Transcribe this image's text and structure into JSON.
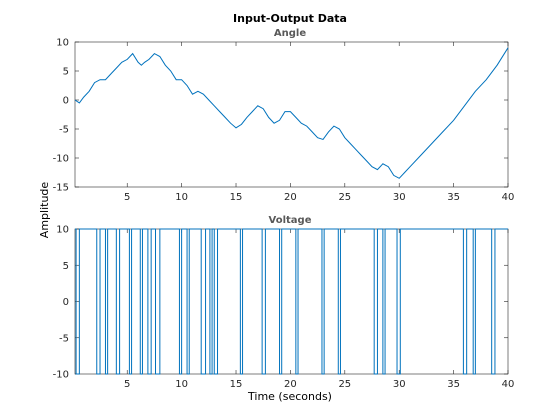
{
  "chart_data": {
    "type": "line",
    "title": "Input-Output Data",
    "xlabel": "Time (seconds)",
    "ylabel": "Amplitude",
    "xlim": [
      0.2,
      40
    ],
    "xticks": [
      5,
      10,
      15,
      20,
      25,
      30,
      35,
      40
    ],
    "grid": false,
    "line_color": "#0072BD",
    "panels": [
      {
        "name": "Angle",
        "ylim": [
          -15,
          10
        ],
        "yticks": [
          -15,
          -10,
          -5,
          0,
          5,
          10
        ],
        "x": [
          0.2,
          0.6,
          1.0,
          1.5,
          2.0,
          2.5,
          3.0,
          3.5,
          4.0,
          4.5,
          5.0,
          5.5,
          6.0,
          6.3,
          6.6,
          7.0,
          7.5,
          8.0,
          8.5,
          9.0,
          9.5,
          10.0,
          10.5,
          11.0,
          11.5,
          12.0,
          12.5,
          13.0,
          13.5,
          14.0,
          14.5,
          15.0,
          15.5,
          16.0,
          16.5,
          17.0,
          17.5,
          18.0,
          18.5,
          19.0,
          19.5,
          20.0,
          20.5,
          21.0,
          21.5,
          22.0,
          22.5,
          23.0,
          23.5,
          24.0,
          24.5,
          25.0,
          25.5,
          26.0,
          26.5,
          27.0,
          27.5,
          28.0,
          28.5,
          29.0,
          29.5,
          30.0,
          30.5,
          31.0,
          32.0,
          33.0,
          34.0,
          35.0,
          36.0,
          37.0,
          38.0,
          39.0,
          40.0
        ],
        "values": [
          0.0,
          -0.5,
          0.5,
          1.5,
          3.0,
          3.5,
          3.5,
          4.5,
          5.5,
          6.5,
          7.0,
          8.0,
          6.5,
          6.0,
          6.5,
          7.0,
          8.0,
          7.5,
          6.0,
          5.0,
          3.5,
          3.5,
          2.5,
          1.0,
          1.5,
          1.0,
          0.0,
          -1.0,
          -2.0,
          -3.0,
          -4.0,
          -4.8,
          -4.2,
          -3.0,
          -2.0,
          -1.0,
          -1.5,
          -3.0,
          -4.0,
          -3.5,
          -2.0,
          -2.0,
          -3.0,
          -4.0,
          -4.5,
          -5.5,
          -6.5,
          -6.8,
          -5.5,
          -4.5,
          -5.0,
          -6.5,
          -7.5,
          -8.5,
          -9.5,
          -10.5,
          -11.5,
          -12.0,
          -11.0,
          -11.5,
          -13.0,
          -13.5,
          -12.5,
          -11.5,
          -9.5,
          -7.5,
          -5.5,
          -3.5,
          -1.0,
          1.5,
          3.5,
          6.0,
          9.0
        ]
      },
      {
        "name": "Voltage",
        "ylim": [
          -10,
          10
        ],
        "yticks": [
          -10,
          -5,
          0,
          5,
          10
        ],
        "steps": [
          [
            0.2,
            10
          ],
          [
            0.3,
            -10
          ],
          [
            0.6,
            10
          ],
          [
            2.2,
            -10
          ],
          [
            2.5,
            10
          ],
          [
            3.0,
            -10
          ],
          [
            3.2,
            10
          ],
          [
            4.0,
            -10
          ],
          [
            4.3,
            10
          ],
          [
            5.2,
            -10
          ],
          [
            5.4,
            10
          ],
          [
            6.2,
            -10
          ],
          [
            6.4,
            10
          ],
          [
            6.9,
            -10
          ],
          [
            7.2,
            10
          ],
          [
            7.6,
            -10
          ],
          [
            8.0,
            10
          ],
          [
            9.8,
            -10
          ],
          [
            10.0,
            10
          ],
          [
            10.5,
            -10
          ],
          [
            10.7,
            10
          ],
          [
            11.8,
            -10
          ],
          [
            12.2,
            10
          ],
          [
            12.6,
            -10
          ],
          [
            12.8,
            10
          ],
          [
            13.0,
            -10
          ],
          [
            13.3,
            10
          ],
          [
            15.4,
            -10
          ],
          [
            15.6,
            10
          ],
          [
            17.4,
            -10
          ],
          [
            17.7,
            10
          ],
          [
            19.0,
            -10
          ],
          [
            19.2,
            10
          ],
          [
            20.5,
            -10
          ],
          [
            20.7,
            10
          ],
          [
            22.9,
            -10
          ],
          [
            23.1,
            10
          ],
          [
            24.4,
            -10
          ],
          [
            24.6,
            10
          ],
          [
            27.7,
            -10
          ],
          [
            28.0,
            10
          ],
          [
            28.5,
            -10
          ],
          [
            28.7,
            10
          ],
          [
            29.8,
            -10
          ],
          [
            30.1,
            10
          ],
          [
            35.9,
            -10
          ],
          [
            36.2,
            10
          ],
          [
            36.8,
            -10
          ],
          [
            37.0,
            10
          ],
          [
            38.5,
            -10
          ],
          [
            38.8,
            10
          ],
          [
            40.0,
            10
          ]
        ]
      }
    ]
  }
}
